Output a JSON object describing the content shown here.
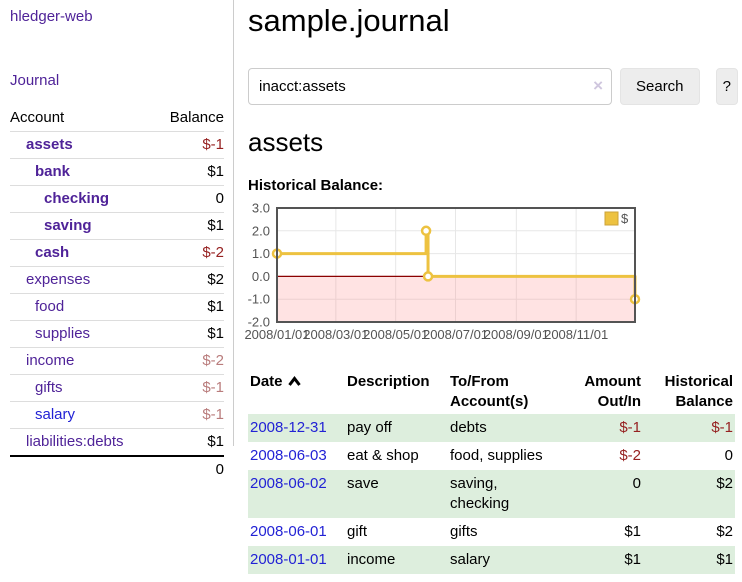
{
  "app": {
    "brand": "hledger-web",
    "nav_journal": "Journal"
  },
  "sidebar": {
    "header": {
      "account": "Account",
      "balance": "Balance"
    },
    "rows": [
      {
        "label": "assets",
        "depth": 1,
        "bold": true,
        "link": "visited",
        "balance": "$-1",
        "balance_class": "neg"
      },
      {
        "label": "bank",
        "depth": 2,
        "bold": true,
        "link": "visited",
        "balance": "$1",
        "balance_class": ""
      },
      {
        "label": "checking",
        "depth": 3,
        "bold": true,
        "link": "visited",
        "balance": "0",
        "balance_class": ""
      },
      {
        "label": "saving",
        "depth": 3,
        "bold": true,
        "link": "visited",
        "balance": "$1",
        "balance_class": ""
      },
      {
        "label": "cash",
        "depth": 2,
        "bold": true,
        "link": "visited",
        "balance": "$-2",
        "balance_class": "neg"
      },
      {
        "label": "expenses",
        "depth": 1,
        "bold": false,
        "link": "visited",
        "balance": "$2",
        "balance_class": ""
      },
      {
        "label": "food",
        "depth": 2,
        "bold": false,
        "link": "visited",
        "balance": "$1",
        "balance_class": ""
      },
      {
        "label": "supplies",
        "depth": 2,
        "bold": false,
        "link": "visited",
        "balance": "$1",
        "balance_class": ""
      },
      {
        "label": "income",
        "depth": 1,
        "bold": false,
        "link": "visited",
        "balance": "$-2",
        "balance_class": "neg-soft"
      },
      {
        "label": "gifts",
        "depth": 2,
        "bold": false,
        "link": "visited",
        "balance": "$-1",
        "balance_class": "neg-soft"
      },
      {
        "label": "salary",
        "depth": 2,
        "bold": false,
        "link": "new",
        "balance": "$-1",
        "balance_class": "neg-soft"
      },
      {
        "label": "liabilities:debts",
        "depth": 1,
        "bold": false,
        "link": "visited",
        "balance": "$1",
        "balance_class": ""
      }
    ],
    "total": "0"
  },
  "main": {
    "title": "sample.journal",
    "search": {
      "query": "inacct:assets",
      "clear": "×",
      "button_label": "Search",
      "help_label": "?"
    },
    "account_heading": "assets",
    "chart_label": "Historical Balance:"
  },
  "chart_data": {
    "type": "line",
    "step": true,
    "title": "Historical Balance",
    "series": [
      {
        "name": "$",
        "color": "#edc240",
        "points": [
          [
            "2008-01-01",
            1
          ],
          [
            "2008-06-01",
            2
          ],
          [
            "2008-06-03",
            0
          ],
          [
            "2008-12-31",
            -1
          ]
        ]
      }
    ],
    "x_range": [
      "2008-01-01",
      "2008-12-31"
    ],
    "x_ticks": [
      "2008/01/01",
      "2008/03/01",
      "2008/05/01",
      "2008/07/01",
      "2008/09/01",
      "2008/11/01"
    ],
    "y_ticks": [
      3.0,
      2.0,
      1.0,
      0.0,
      -1.0,
      -2.0
    ],
    "ylim": [
      -2,
      3
    ],
    "legend": "$",
    "legend_position": "top-right",
    "grid": true,
    "colors": {
      "border": "#545454",
      "grid": "#e7e7e7",
      "negative_fill": "#ff8a8a",
      "zero_line": "#8b0000",
      "marker_fill": "#ffffff",
      "tick_text": "#545454",
      "legend_swatch_border": "#cca33a"
    }
  },
  "register": {
    "columns": [
      "Date",
      "Description",
      "To/From Account(s)",
      "Amount Out/In",
      "Historical Balance"
    ],
    "rows": [
      {
        "date": "2008-12-31",
        "description": "pay off",
        "accounts": "debts",
        "amount": "$-1",
        "amount_class": "neg",
        "balance": "$-1",
        "balance_class": "neg"
      },
      {
        "date": "2008-06-03",
        "description": "eat & shop",
        "accounts": "food, supplies",
        "amount": "$-2",
        "amount_class": "neg",
        "balance": "0",
        "balance_class": ""
      },
      {
        "date": "2008-06-02",
        "description": "save",
        "accounts": "saving, checking",
        "amount": "0",
        "amount_class": "",
        "balance": "$2",
        "balance_class": ""
      },
      {
        "date": "2008-06-01",
        "description": "gift",
        "accounts": "gifts",
        "amount": "$1",
        "amount_class": "",
        "balance": "$2",
        "balance_class": ""
      },
      {
        "date": "2008-01-01",
        "description": "income",
        "accounts": "salary",
        "amount": "$1",
        "amount_class": "",
        "balance": "$1",
        "balance_class": ""
      }
    ]
  }
}
